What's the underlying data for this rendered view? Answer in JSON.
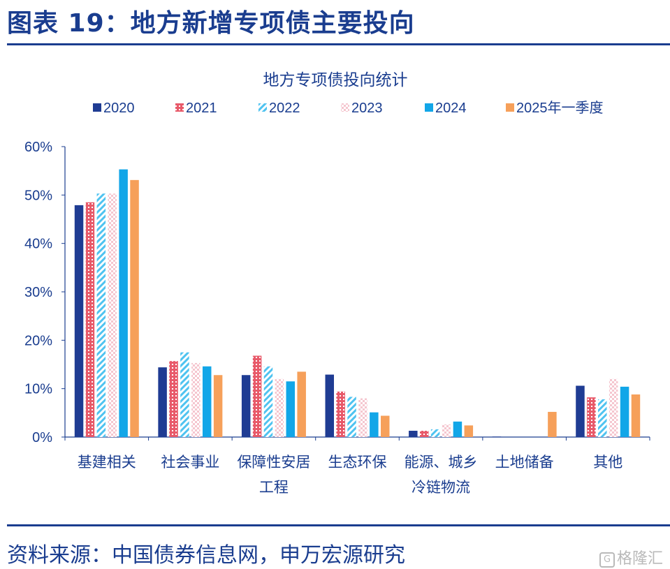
{
  "header": {
    "title": "图表 19：地方新增专项债主要投向"
  },
  "footer": {
    "source": "资料来源：中国债券信息网，申万宏源研究",
    "watermark": "格隆汇",
    "watermark_icon": "G"
  },
  "colors": {
    "title": "#1a3d8f",
    "axis": "#1a3d8f",
    "series": [
      "#1f3c93",
      "#e85a6a",
      "#4fc3f0",
      "#f5c6cf",
      "#12a6e8",
      "#f6a05a"
    ]
  },
  "chart_data": {
    "type": "bar",
    "title": "地方专项债投向统计",
    "xlabel": "",
    "ylabel": "",
    "ylim": [
      0,
      60
    ],
    "yticks": [
      "0%",
      "10%",
      "20%",
      "30%",
      "40%",
      "50%",
      "60%"
    ],
    "legend_position": "top",
    "grid": false,
    "categories": [
      [
        "基建相关"
      ],
      [
        "社会事业"
      ],
      [
        "保障性安居",
        "工程"
      ],
      [
        "生态环保"
      ],
      [
        "能源、城乡",
        "冷链物流"
      ],
      [
        "土地储备"
      ],
      [
        "其他"
      ]
    ],
    "series": [
      {
        "name": "2020",
        "pattern": "solid",
        "values": [
          47.9,
          14.4,
          12.8,
          12.9,
          1.3,
          0.1,
          10.6
        ]
      },
      {
        "name": "2021",
        "pattern": "dots",
        "values": [
          48.5,
          15.7,
          16.8,
          9.4,
          1.3,
          0.0,
          8.2
        ]
      },
      {
        "name": "2022",
        "pattern": "diagonal",
        "values": [
          50.3,
          17.5,
          14.6,
          8.3,
          1.6,
          0.0,
          7.8
        ]
      },
      {
        "name": "2023",
        "pattern": "checker",
        "values": [
          50.3,
          15.3,
          12.0,
          8.0,
          2.6,
          0.0,
          12.0
        ]
      },
      {
        "name": "2024",
        "pattern": "solid",
        "values": [
          55.3,
          14.6,
          11.5,
          5.1,
          3.2,
          0.0,
          10.4
        ]
      },
      {
        "name": "2025年一季度",
        "pattern": "solid",
        "values": [
          53.1,
          12.8,
          13.5,
          4.4,
          2.4,
          5.2,
          8.8
        ]
      }
    ]
  }
}
